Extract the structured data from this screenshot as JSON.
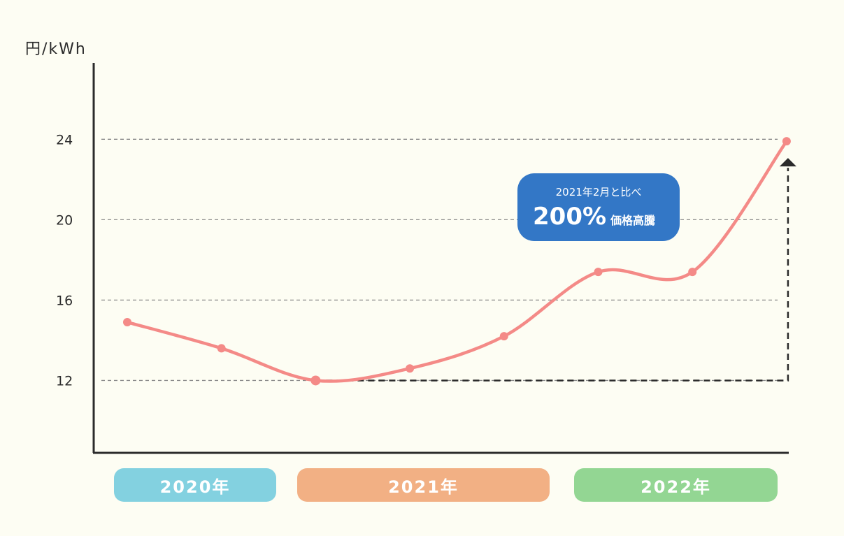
{
  "unit": "円/kWh",
  "chart_data": {
    "type": "line",
    "x": [
      1,
      2,
      3,
      4,
      5,
      6,
      7,
      8
    ],
    "values": [
      14.9,
      13.6,
      12.0,
      12.6,
      14.2,
      17.4,
      17.4,
      23.9
    ],
    "yticks": [
      12,
      16,
      20,
      24
    ],
    "ylim": [
      8.4,
      27.8
    ],
    "grid": true,
    "baseline_value": 12,
    "line_color": "#f48a87",
    "grid_color": "#8a8a8a",
    "title": "",
    "xlabel": "",
    "ylabel": "円/kWh"
  },
  "year_groups": [
    {
      "label": "2020年",
      "color": "#83d1e0"
    },
    {
      "label": "2021年",
      "color": "#f2b084"
    },
    {
      "label": "2022年",
      "color": "#93d693"
    }
  ],
  "callout": {
    "line1": "2021年2月と比べ",
    "big": "200%",
    "small": "価格高騰",
    "color": "#3377c6"
  }
}
